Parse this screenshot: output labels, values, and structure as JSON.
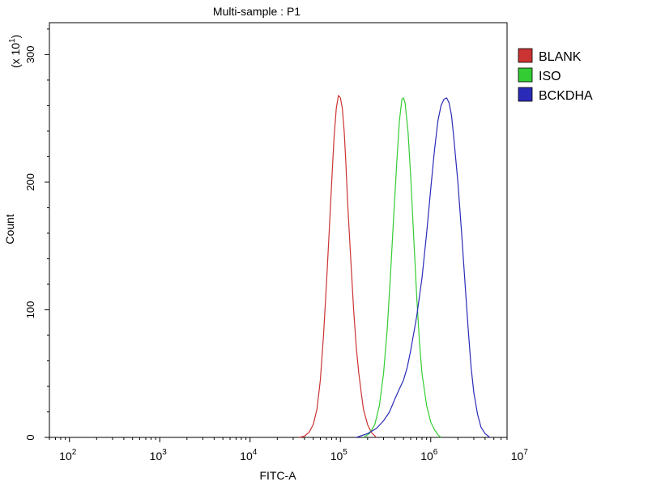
{
  "chart_data": {
    "type": "line",
    "title": "Multi-sample : P1",
    "xlabel": "FITC-A",
    "ylabel": "Count",
    "y_multiplier_label": "(x 10",
    "y_multiplier_exp": "1",
    "y_multiplier_close": ")",
    "x_scale": "log",
    "xlim": [
      60,
      7000000
    ],
    "ylim": [
      0,
      325
    ],
    "x_ticks": [
      {
        "value": 100,
        "base": "10",
        "exp": "2"
      },
      {
        "value": 1000,
        "base": "10",
        "exp": "3"
      },
      {
        "value": 10000,
        "base": "10",
        "exp": "4"
      },
      {
        "value": 100000,
        "base": "10",
        "exp": "5"
      },
      {
        "value": 1000000,
        "base": "10",
        "exp": "6"
      },
      {
        "value": 10000000,
        "base": "10",
        "exp": "7"
      }
    ],
    "y_ticks": [
      {
        "value": 0,
        "label": "0"
      },
      {
        "value": 100,
        "label": "100"
      },
      {
        "value": 200,
        "label": "200"
      },
      {
        "value": 300,
        "label": "300"
      }
    ],
    "grid": false,
    "legend_position": "right",
    "series": [
      {
        "name": "BLANK",
        "color": "#cc3333",
        "points": [
          [
            35000,
            0
          ],
          [
            40000,
            1
          ],
          [
            45000,
            4
          ],
          [
            50000,
            10
          ],
          [
            55000,
            22
          ],
          [
            60000,
            45
          ],
          [
            65000,
            80
          ],
          [
            70000,
            120
          ],
          [
            75000,
            160
          ],
          [
            80000,
            200
          ],
          [
            85000,
            235
          ],
          [
            90000,
            258
          ],
          [
            95000,
            268
          ],
          [
            100000,
            266
          ],
          [
            105000,
            258
          ],
          [
            110000,
            240
          ],
          [
            115000,
            215
          ],
          [
            120000,
            185
          ],
          [
            130000,
            140
          ],
          [
            140000,
            100
          ],
          [
            150000,
            70
          ],
          [
            160000,
            50
          ],
          [
            170000,
            35
          ],
          [
            180000,
            22
          ],
          [
            200000,
            10
          ],
          [
            220000,
            4
          ],
          [
            250000,
            0
          ]
        ]
      },
      {
        "name": "ISO",
        "color": "#33cc33",
        "points": [
          [
            180000,
            0
          ],
          [
            210000,
            3
          ],
          [
            240000,
            10
          ],
          [
            270000,
            25
          ],
          [
            300000,
            50
          ],
          [
            330000,
            85
          ],
          [
            360000,
            130
          ],
          [
            390000,
            175
          ],
          [
            420000,
            215
          ],
          [
            450000,
            248
          ],
          [
            480000,
            265
          ],
          [
            500000,
            266
          ],
          [
            520000,
            262
          ],
          [
            560000,
            240
          ],
          [
            600000,
            205
          ],
          [
            650000,
            155
          ],
          [
            700000,
            110
          ],
          [
            750000,
            75
          ],
          [
            800000,
            50
          ],
          [
            900000,
            25
          ],
          [
            1000000,
            12
          ],
          [
            1100000,
            6
          ],
          [
            1200000,
            2
          ],
          [
            1300000,
            0
          ]
        ]
      },
      {
        "name": "BCKDHA",
        "color": "#2a2ab8",
        "points": [
          [
            150000,
            0
          ],
          [
            200000,
            3
          ],
          [
            250000,
            7
          ],
          [
            300000,
            13
          ],
          [
            350000,
            20
          ],
          [
            400000,
            30
          ],
          [
            450000,
            38
          ],
          [
            500000,
            45
          ],
          [
            550000,
            55
          ],
          [
            600000,
            68
          ],
          [
            700000,
            95
          ],
          [
            800000,
            125
          ],
          [
            900000,
            160
          ],
          [
            1000000,
            195
          ],
          [
            1100000,
            225
          ],
          [
            1200000,
            248
          ],
          [
            1300000,
            260
          ],
          [
            1400000,
            265
          ],
          [
            1500000,
            266
          ],
          [
            1600000,
            262
          ],
          [
            1700000,
            252
          ],
          [
            1800000,
            235
          ],
          [
            2000000,
            200
          ],
          [
            2200000,
            160
          ],
          [
            2400000,
            120
          ],
          [
            2600000,
            85
          ],
          [
            2800000,
            55
          ],
          [
            3000000,
            35
          ],
          [
            3300000,
            18
          ],
          [
            3600000,
            8
          ],
          [
            4000000,
            3
          ],
          [
            4500000,
            0
          ]
        ]
      }
    ]
  }
}
